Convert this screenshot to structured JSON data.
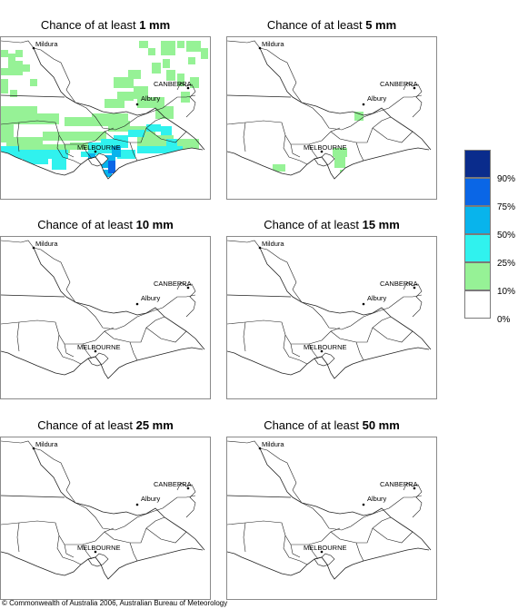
{
  "panels": [
    {
      "prefix": "Chance of at least ",
      "amount": "1 mm"
    },
    {
      "prefix": "Chance of at least ",
      "amount": "5 mm"
    },
    {
      "prefix": "Chance of at least ",
      "amount": "10 mm"
    },
    {
      "prefix": "Chance of at least ",
      "amount": "15 mm"
    },
    {
      "prefix": "Chance of at least ",
      "amount": "25 mm"
    },
    {
      "prefix": "Chance of at least ",
      "amount": "50 mm"
    }
  ],
  "places": {
    "mildura": "Mildura",
    "canberra": "CANBERRA",
    "albury": "Albury",
    "melbourne": "MELBOURNE"
  },
  "legend": {
    "labels": [
      "90%",
      "75%",
      "50%",
      "25%",
      "10%",
      "0%"
    ],
    "colors": [
      "#0a2c8c",
      "#0a66e6",
      "#08b4ec",
      "#30f2ee",
      "#96f296",
      "#ffffff"
    ]
  },
  "copyright": "© Commonwealth of Australia 2006, Australian Bureau of Meteorology"
}
